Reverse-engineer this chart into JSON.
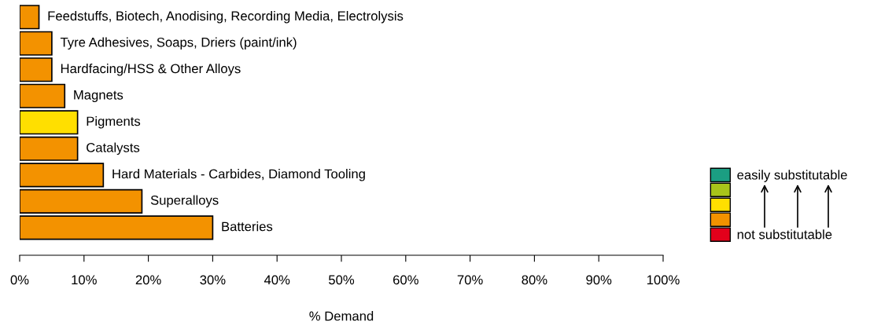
{
  "chart_data": {
    "type": "bar",
    "orientation": "horizontal",
    "categories": [
      "Feedstuffs, Biotech, Anodising, Recording Media, Electrolysis",
      "Tyre Adhesives, Soaps, Driers (paint/ink)",
      "Hardfacing/HSS & Other Alloys",
      "Magnets",
      "Pigments",
      "Catalysts",
      "Hard Materials - Carbides, Diamond Tooling",
      "Superalloys",
      "Batteries"
    ],
    "series": [
      {
        "name": "easily substitutable",
        "color": "#1b9e82",
        "values": [
          null,
          null,
          null,
          null,
          null,
          null,
          null,
          null,
          null
        ]
      },
      {
        "color": "#a8c41a",
        "values": [
          null,
          null,
          null,
          null,
          null,
          null,
          null,
          null,
          null
        ]
      },
      {
        "color": "#ffdf00",
        "values": [
          null,
          null,
          null,
          null,
          9,
          null,
          null,
          null,
          null
        ]
      },
      {
        "color": "#f39200",
        "values": [
          3,
          5,
          5,
          7,
          null,
          9,
          13,
          19,
          30
        ]
      },
      {
        "name": "not substitutable",
        "color": "#e3001b",
        "values": [
          null,
          null,
          null,
          null,
          null,
          null,
          null,
          null,
          null
        ]
      }
    ],
    "xlim": [
      0,
      100
    ],
    "xticks": [
      {
        "value": 0,
        "label": "0%"
      },
      {
        "value": 10,
        "label": "10%"
      },
      {
        "value": 20,
        "label": "20%"
      },
      {
        "value": 30,
        "label": "30%"
      },
      {
        "value": 40,
        "label": "40%"
      },
      {
        "value": 50,
        "label": "50%"
      },
      {
        "value": 60,
        "label": "60%"
      },
      {
        "value": 70,
        "label": "70%"
      },
      {
        "value": 80,
        "label": "80%"
      },
      {
        "value": 90,
        "label": "90%"
      },
      {
        "value": 100,
        "label": "100%"
      }
    ],
    "xlabel": "% Demand",
    "tick_labels": "x",
    "grid": false,
    "legend": "right"
  }
}
